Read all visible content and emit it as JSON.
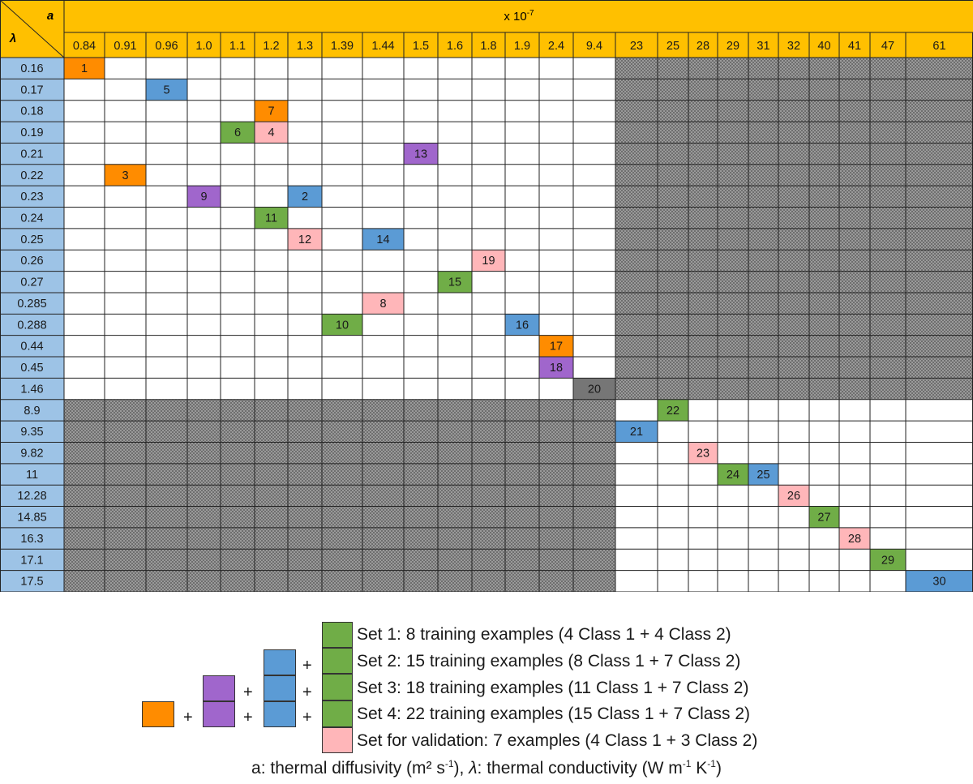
{
  "header": {
    "a_symbol": "a",
    "lambda_symbol": "λ",
    "scale_base": "x 10",
    "scale_exp": "-7"
  },
  "a_values": [
    "0.84",
    "0.91",
    "0.96",
    "1.0",
    "1.1",
    "1.2",
    "1.3",
    "1.39",
    "1.44",
    "1.5",
    "1.6",
    "1.8",
    "1.9",
    "2.4",
    "9.4",
    "23",
    "25",
    "28",
    "29",
    "31",
    "32",
    "40",
    "41",
    "47",
    "61"
  ],
  "lambda_values": [
    "0.16",
    "0.17",
    "0.18",
    "0.19",
    "0.21",
    "0.22",
    "0.23",
    "0.24",
    "0.25",
    "0.26",
    "0.27",
    "0.285",
    "0.288",
    "0.44",
    "0.45",
    "1.46",
    "8.9",
    "9.35",
    "9.82",
    "11",
    "12.28",
    "14.85",
    "16.3",
    "17.1",
    "17.5"
  ],
  "samples": [
    {
      "row": 0,
      "col": 0,
      "label": "1",
      "set": "orange"
    },
    {
      "row": 1,
      "col": 2,
      "label": "5",
      "set": "blue"
    },
    {
      "row": 2,
      "col": 5,
      "label": "7",
      "set": "orange"
    },
    {
      "row": 3,
      "col": 4,
      "label": "6",
      "set": "green"
    },
    {
      "row": 3,
      "col": 5,
      "label": "4",
      "set": "pink"
    },
    {
      "row": 4,
      "col": 9,
      "label": "13",
      "set": "purple"
    },
    {
      "row": 5,
      "col": 1,
      "label": "3",
      "set": "orange"
    },
    {
      "row": 6,
      "col": 3,
      "label": "9",
      "set": "purple"
    },
    {
      "row": 6,
      "col": 6,
      "label": "2",
      "set": "blue"
    },
    {
      "row": 7,
      "col": 5,
      "label": "11",
      "set": "green"
    },
    {
      "row": 8,
      "col": 6,
      "label": "12",
      "set": "pink"
    },
    {
      "row": 8,
      "col": 8,
      "label": "14",
      "set": "blue"
    },
    {
      "row": 9,
      "col": 11,
      "label": "19",
      "set": "pink"
    },
    {
      "row": 10,
      "col": 10,
      "label": "15",
      "set": "green"
    },
    {
      "row": 11,
      "col": 8,
      "label": "8",
      "set": "pink"
    },
    {
      "row": 12,
      "col": 7,
      "label": "10",
      "set": "green"
    },
    {
      "row": 12,
      "col": 12,
      "label": "16",
      "set": "blue"
    },
    {
      "row": 13,
      "col": 13,
      "label": "17",
      "set": "orange"
    },
    {
      "row": 14,
      "col": 13,
      "label": "18",
      "set": "purple"
    },
    {
      "row": 15,
      "col": 14,
      "label": "20",
      "set": "gray"
    },
    {
      "row": 16,
      "col": 16,
      "label": "22",
      "set": "green"
    },
    {
      "row": 17,
      "col": 15,
      "label": "21",
      "set": "blue"
    },
    {
      "row": 18,
      "col": 17,
      "label": "23",
      "set": "pink"
    },
    {
      "row": 19,
      "col": 18,
      "label": "24",
      "set": "green"
    },
    {
      "row": 19,
      "col": 19,
      "label": "25",
      "set": "blue"
    },
    {
      "row": 20,
      "col": 20,
      "label": "26",
      "set": "pink"
    },
    {
      "row": 21,
      "col": 21,
      "label": "27",
      "set": "green"
    },
    {
      "row": 22,
      "col": 22,
      "label": "28",
      "set": "pink"
    },
    {
      "row": 23,
      "col": 23,
      "label": "29",
      "set": "green"
    },
    {
      "row": 24,
      "col": 24,
      "label": "30",
      "set": "blue"
    }
  ],
  "colors": {
    "header": "#ffc000",
    "row_header": "#9dc3e6",
    "orange": "#ff8c00",
    "purple": "#a066cc",
    "blue": "#5b9bd5",
    "green": "#70ad47",
    "pink": "#ffb6b9",
    "gray": "#767676",
    "hatch": "#8a8a8a",
    "empty": "#ffffff",
    "grid_line": "#222222"
  },
  "legend": {
    "items": [
      {
        "text": "Set 1: 8 training examples (4 Class 1 + 4 Class 2)"
      },
      {
        "text": "Set 2: 15 training examples (8 Class 1 + 7 Class 2)"
      },
      {
        "text": "Set 3: 18 training examples (11 Class 1 + 7 Class 2)"
      },
      {
        "text": "Set 4: 22 training examples (15 Class 1 + 7 Class 2)"
      },
      {
        "text": "Set for validation: 7 examples  (4 Class 1 + 3 Class 2)"
      }
    ],
    "plus_sign": "+",
    "caption_a": "a: thermal diffusivity (m² s",
    "caption_a_exp": "-1",
    "caption_mid": "), ",
    "caption_lambda_symbol": "λ",
    "caption_lambda": ": thermal conductivity (W m",
    "caption_lambda_exp1": "-1",
    "caption_space": " K",
    "caption_lambda_exp2": "-1",
    "caption_end": ")"
  }
}
